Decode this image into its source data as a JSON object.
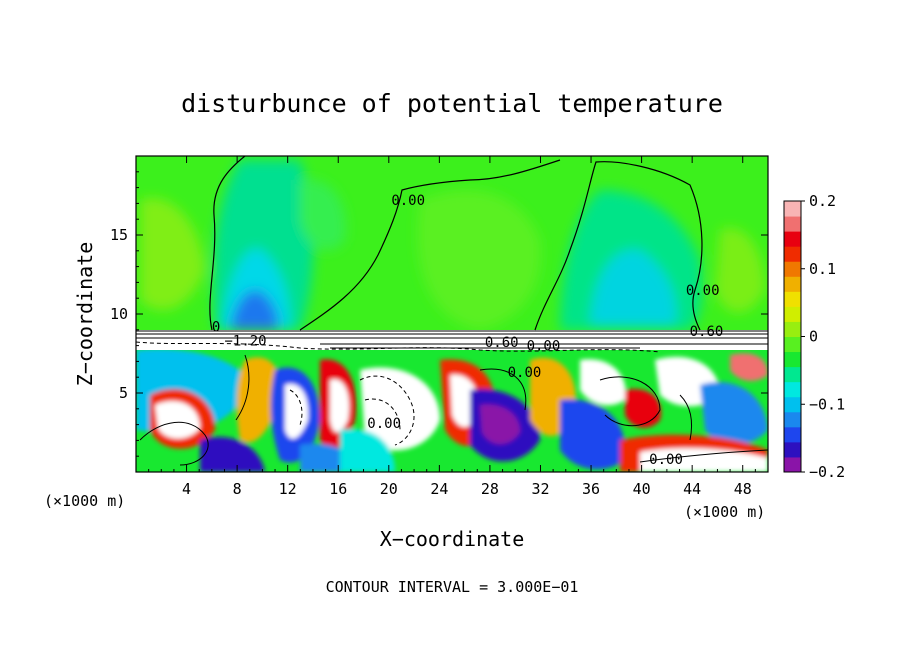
{
  "chart_data": {
    "type": "heatmap",
    "title": "disturbunce of potential temperature",
    "xlabel": "X−coordinate",
    "ylabel": "Z−coordinate",
    "x_unit": "(×1000 m)",
    "y_unit": "(×1000 m)",
    "xlim": [
      0,
      50
    ],
    "ylim": [
      0,
      20
    ],
    "x_ticks": [
      4,
      8,
      12,
      16,
      20,
      24,
      28,
      32,
      36,
      40,
      44,
      48
    ],
    "x_tick_labels": [
      "4",
      "8",
      "12",
      "16",
      "20",
      "24",
      "28",
      "32",
      "36",
      "40",
      "44",
      "48"
    ],
    "y_ticks": [
      5,
      10,
      15
    ],
    "y_tick_labels": [
      "5",
      "10",
      "15"
    ],
    "footer": "CONTOUR INTERVAL = 3.000E−01",
    "colorbar": {
      "range": [
        -0.2,
        0.2
      ],
      "ticks": [
        0.2,
        0.1,
        0,
        -0.1,
        -0.2
      ],
      "tick_labels": [
        "0.2",
        "0.1",
        "0",
        "−0.1",
        "−0.2"
      ],
      "colors": [
        "#8a14a8",
        "#2d10bf",
        "#1e46ee",
        "#1a88ee",
        "#00c0ee",
        "#00e8e0",
        "#00e890",
        "#18e830",
        "#58f020",
        "#98ee10",
        "#d0ee00",
        "#f0e000",
        "#f0b000",
        "#f07800",
        "#f02c00",
        "#e80010",
        "#f07070",
        "#f8b4b4"
      ]
    },
    "contour_labels": [
      {
        "text": "0.00",
        "x": 20.2,
        "y": 16.9
      },
      {
        "text": "0.00",
        "x": 43.5,
        "y": 11.2
      },
      {
        "text": "0.60",
        "x": 43.8,
        "y": 8.6
      },
      {
        "text": "0.60",
        "x": 27.6,
        "y": 7.9
      },
      {
        "text": "0.00",
        "x": 30.9,
        "y": 7.7
      },
      {
        "text": "0.00",
        "x": 29.4,
        "y": 6.0
      },
      {
        "text": "0.00",
        "x": 18.3,
        "y": 2.8
      },
      {
        "text": "0.00",
        "x": 40.6,
        "y": 0.5
      },
      {
        "text": "0",
        "x": 6.0,
        "y": 8.9
      },
      {
        "text": "−1.20",
        "x": 7.0,
        "y": 8.0
      }
    ]
  }
}
